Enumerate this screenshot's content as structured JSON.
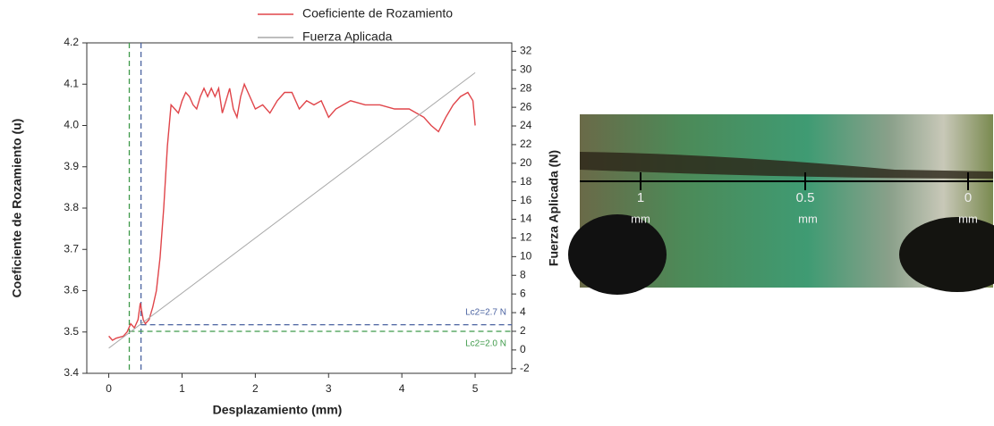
{
  "chart_data": {
    "type": "line",
    "xlabel": "Desplazamiento (mm)",
    "ylabel": "Coeficiente de Rozamiento (u)",
    "y2label": "Fuerza Aplicada (N)",
    "xlim": [
      -0.3,
      5.5
    ],
    "xticks": [
      0,
      1,
      2,
      3,
      4,
      5
    ],
    "ylim": [
      3.4,
      4.2
    ],
    "yticks": [
      3.4,
      3.5,
      3.6,
      3.7,
      3.8,
      3.9,
      {
        "value": 4,
        "label": "4.0"
      },
      4.1,
      4.2
    ],
    "y2lim": [
      -2.5,
      32.9
    ],
    "y2ticks": [
      -2,
      0,
      2,
      4,
      6,
      8,
      10,
      12,
      14,
      16,
      18,
      20,
      22,
      24,
      26,
      28,
      30,
      32
    ],
    "series": [
      {
        "name": "Coeficiente de Rozamiento",
        "color": "#e0454a",
        "axis": "y",
        "x": [
          0,
          0.05,
          0.1,
          0.2,
          0.25,
          0.3,
          0.35,
          0.4,
          0.43,
          0.47,
          0.5,
          0.55,
          0.6,
          0.65,
          0.7,
          0.75,
          0.8,
          0.85,
          0.9,
          0.95,
          1,
          1.05,
          1.1,
          1.15,
          1.2,
          1.25,
          1.3,
          1.35,
          1.4,
          1.45,
          1.5,
          1.55,
          1.6,
          1.65,
          1.7,
          1.75,
          1.8,
          1.85,
          1.9,
          2,
          2.1,
          2.2,
          2.3,
          2.4,
          2.5,
          2.6,
          2.7,
          2.8,
          2.9,
          3,
          3.1,
          3.3,
          3.5,
          3.7,
          3.9,
          4.1,
          4.3,
          4.4,
          4.5,
          4.6,
          4.7,
          4.8,
          4.9,
          4.97,
          5
        ],
        "values": [
          3.49,
          3.48,
          3.485,
          3.49,
          3.5,
          3.52,
          3.51,
          3.53,
          3.57,
          3.53,
          3.52,
          3.53,
          3.56,
          3.6,
          3.68,
          3.8,
          3.95,
          4.05,
          4.04,
          4.03,
          4.06,
          4.08,
          4.07,
          4.05,
          4.04,
          4.07,
          4.09,
          4.07,
          4.09,
          4.07,
          4.09,
          4.03,
          4.06,
          4.09,
          4.04,
          4.02,
          4.07,
          4.1,
          4.08,
          4.04,
          4.05,
          4.03,
          4.06,
          4.08,
          4.08,
          4.04,
          4.06,
          4.05,
          4.06,
          4.02,
          4.04,
          4.06,
          4.05,
          4.05,
          4.04,
          4.04,
          4.02,
          4,
          3.985,
          4.02,
          4.05,
          4.07,
          4.08,
          4.06,
          4
        ]
      },
      {
        "name": "Fuerza Aplicada",
        "color": "#a8a8a8",
        "axis": "y2",
        "x": [
          0,
          5
        ],
        "values": [
          0.2,
          29.7
        ]
      }
    ],
    "annotations": [
      {
        "label": "Lc2=2.7 N",
        "x": 0.44,
        "y2": 2.7,
        "color": "#4a62a0"
      },
      {
        "label": "Lc2=2.0 N",
        "x": 0.28,
        "y2": 2.0,
        "color": "#3f9a4a"
      }
    ]
  },
  "micrograph": {
    "scale": [
      {
        "label": "1",
        "unit": "mm"
      },
      {
        "label": "0.5",
        "unit": "mm"
      },
      {
        "label": "0",
        "unit": "mm"
      }
    ]
  }
}
